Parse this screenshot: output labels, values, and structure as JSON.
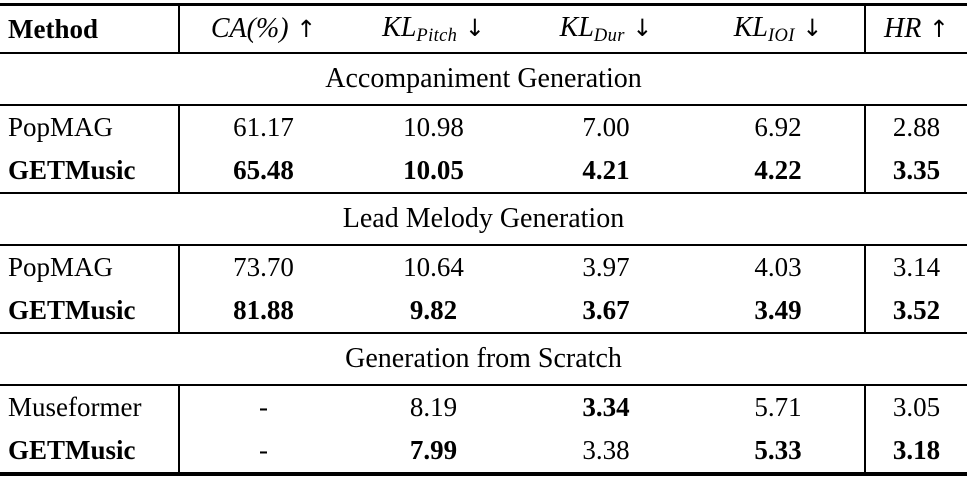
{
  "table": {
    "header": {
      "method_label": "Method",
      "columns": [
        {
          "base": "CA(%)",
          "sub": "",
          "arrow": "↑"
        },
        {
          "base": "KL",
          "sub": "Pitch",
          "arrow": "↓"
        },
        {
          "base": "KL",
          "sub": "Dur",
          "arrow": "↓"
        },
        {
          "base": "KL",
          "sub": "IOI",
          "arrow": "↓"
        },
        {
          "base": "HR",
          "sub": "",
          "arrow": "↑"
        }
      ]
    },
    "sections": [
      {
        "title": "Accompaniment Generation",
        "rows": [
          {
            "method": "PopMAG",
            "bold_method": false,
            "values": [
              "61.17",
              "10.98",
              "7.00",
              "6.92",
              "2.88"
            ],
            "bold": [
              false,
              false,
              false,
              false,
              false
            ]
          },
          {
            "method": "GETMusic",
            "bold_method": true,
            "values": [
              "65.48",
              "10.05",
              "4.21",
              "4.22",
              "3.35"
            ],
            "bold": [
              true,
              true,
              true,
              true,
              true
            ]
          }
        ]
      },
      {
        "title": "Lead Melody Generation",
        "rows": [
          {
            "method": "PopMAG",
            "bold_method": false,
            "values": [
              "73.70",
              "10.64",
              "3.97",
              "4.03",
              "3.14"
            ],
            "bold": [
              false,
              false,
              false,
              false,
              false
            ]
          },
          {
            "method": "GETMusic",
            "bold_method": true,
            "values": [
              "81.88",
              "9.82",
              "3.67",
              "3.49",
              "3.52"
            ],
            "bold": [
              true,
              true,
              true,
              true,
              true
            ]
          }
        ]
      },
      {
        "title": "Generation from Scratch",
        "rows": [
          {
            "method": "Museformer",
            "bold_method": false,
            "values": [
              "-",
              "8.19",
              "3.34",
              "5.71",
              "3.05"
            ],
            "bold": [
              false,
              false,
              true,
              false,
              false
            ]
          },
          {
            "method": "GETMusic",
            "bold_method": true,
            "values": [
              "-",
              "7.99",
              "3.38",
              "5.33",
              "3.18"
            ],
            "bold": [
              false,
              true,
              false,
              true,
              true
            ]
          }
        ]
      }
    ]
  }
}
